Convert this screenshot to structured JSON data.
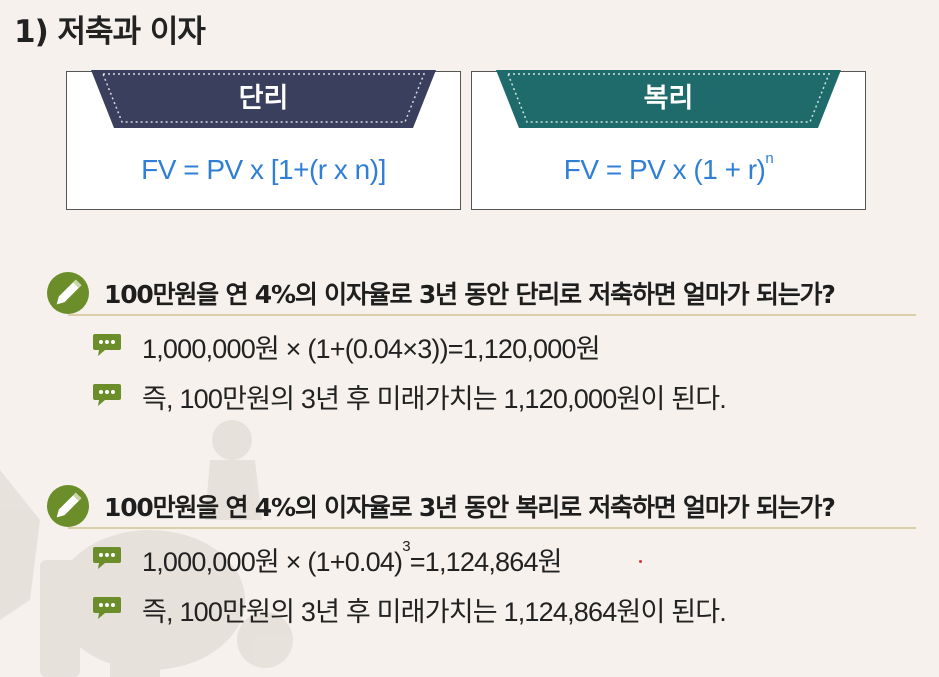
{
  "title": "1) 저축과 이자",
  "simple": {
    "label": "단리",
    "formula": "FV = PV x [1+(r x n)]",
    "color": "#3a3f5e"
  },
  "compound": {
    "label": "복리",
    "formula_base": "FV = PV x (1 + r)",
    "formula_exp": "n",
    "color": "#1f6b6b"
  },
  "questions": [
    {
      "question": "100만원을 연 4%의 이자율로 3년 동안 단리로 저축하면 얼마가 되는가?",
      "calc": "1,000,000원 × (1+(0.04×3))=1,120,000원",
      "answer": "즉, 100만원의 3년 후 미래가치는 1,120,000원이 된다."
    },
    {
      "question": "100만원을 연 4%의 이자율로 3년 동안 복리로 저축하면 얼마가 되는가?",
      "calc_base": "1,000,000원 × (1+0.04)",
      "calc_exp": "3",
      "calc_tail": "=1,124,864원",
      "answer": "즉, 100만원의 3년 후 미래가치는 1,124,864원이 된다."
    }
  ],
  "colors": {
    "formula": "#2f7fd6",
    "icon_green": "#6b8e2a",
    "divider": "#d9cfa9"
  },
  "icons": {
    "question": "pencil-icon",
    "answer": "speech-bubble-icon"
  }
}
